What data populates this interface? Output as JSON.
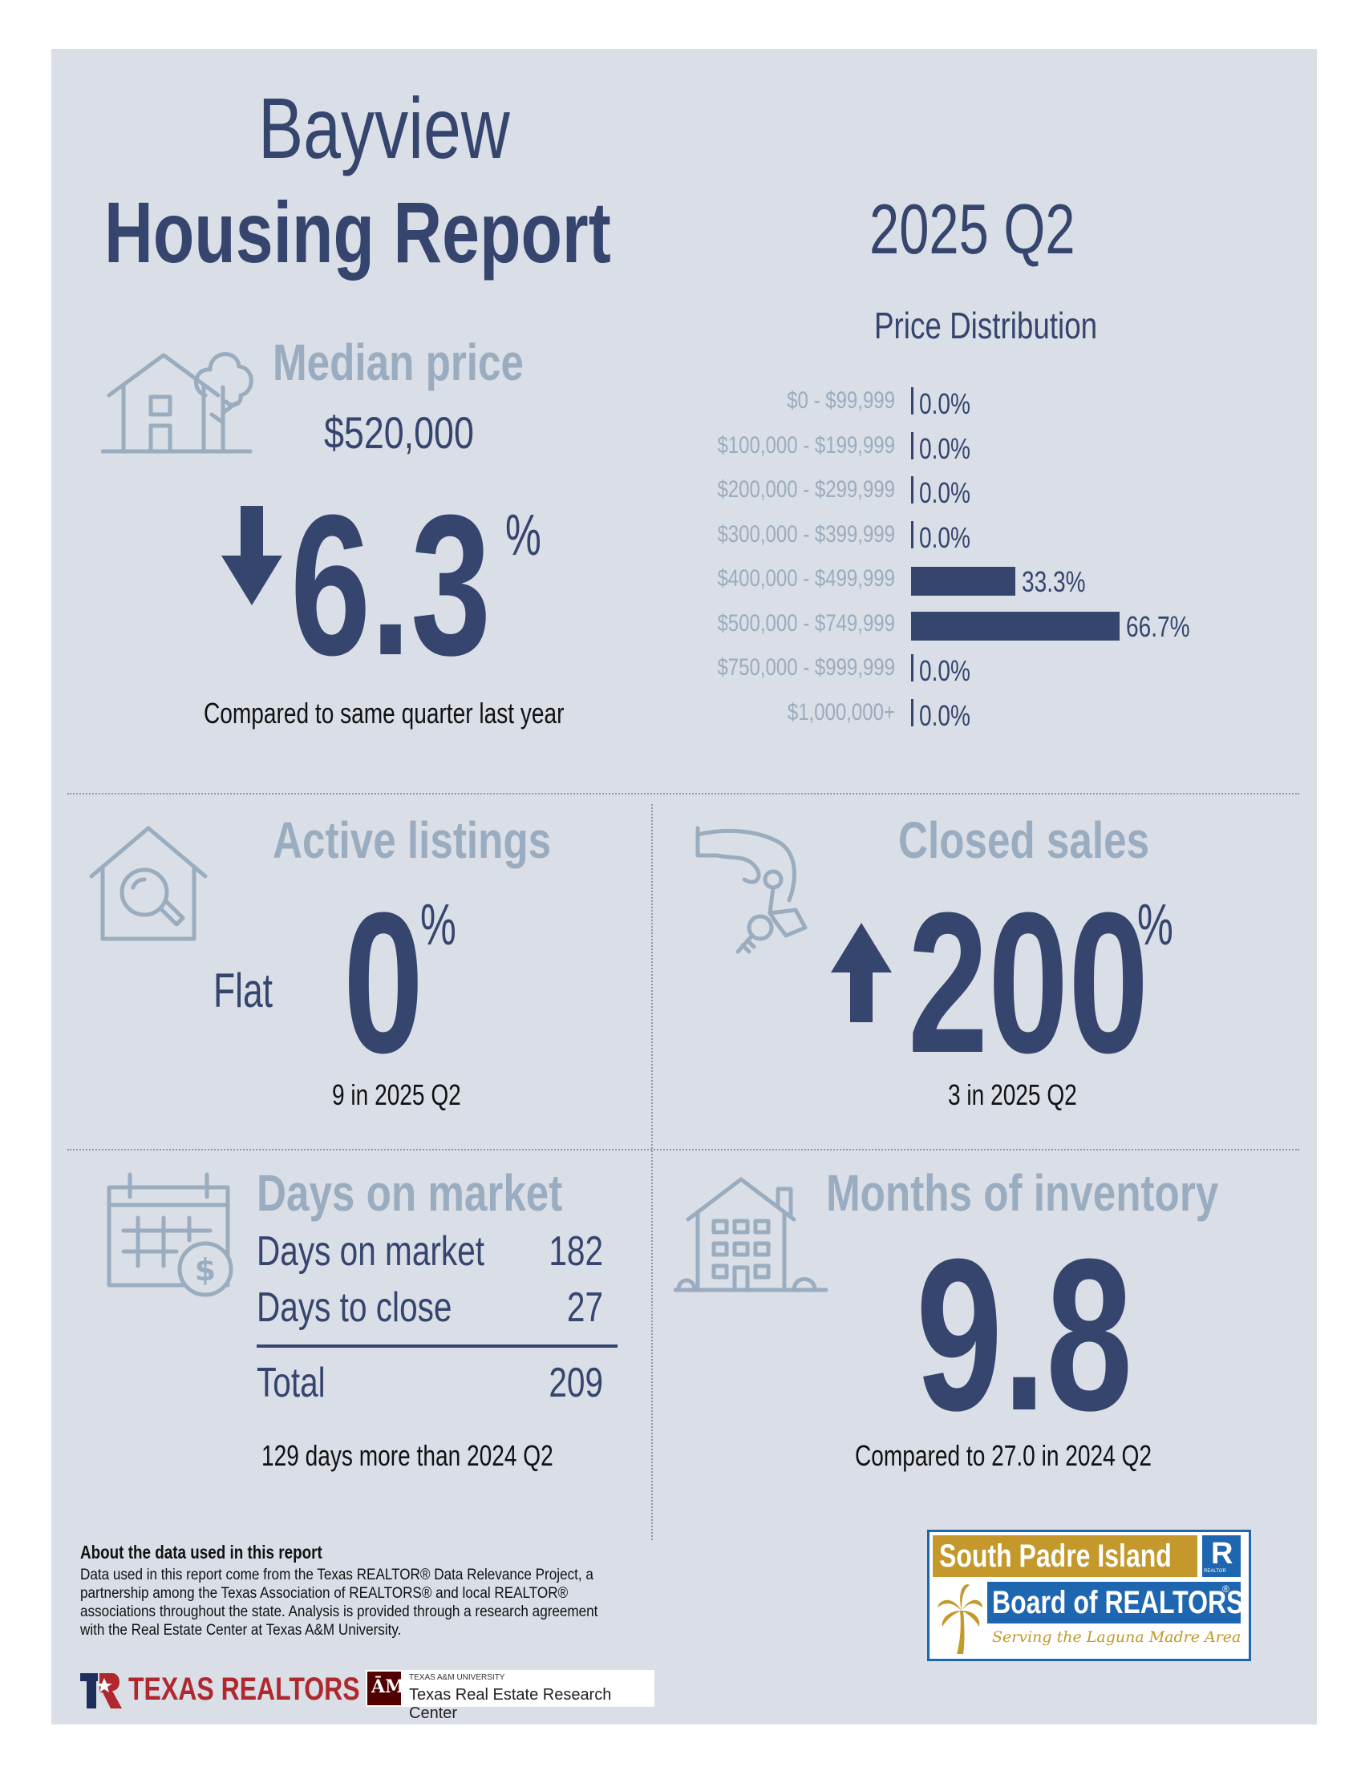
{
  "header": {
    "title_line1": "Bayview",
    "title_line2": "Housing Report",
    "quarter": "2025 Q2"
  },
  "median_price": {
    "heading": "Median price",
    "value": "$520,000",
    "direction": "down",
    "change": "6.3",
    "unit": "%",
    "caption": "Compared to same quarter last year"
  },
  "price_distribution": {
    "title": "Price Distribution"
  },
  "chart_data": {
    "type": "bar",
    "orientation": "horizontal",
    "title": "Price Distribution",
    "categories": [
      "$0 - $99,999",
      "$100,000 - $199,999",
      "$200,000 - $299,999",
      "$300,000 - $399,999",
      "$400,000 - $499,999",
      "$500,000 - $749,999",
      "$750,000 - $999,999",
      "$1,000,000+"
    ],
    "values": [
      0.0,
      0.0,
      0.0,
      0.0,
      33.3,
      66.7,
      0.0,
      0.0
    ],
    "labels": [
      "0.0%",
      "0.0%",
      "0.0%",
      "0.0%",
      "33.3%",
      "66.7%",
      "0.0%",
      "0.0%"
    ],
    "bar_color": "#35456e"
  },
  "active_listings": {
    "heading": "Active listings",
    "direction_label": "Flat",
    "change": "0",
    "unit": "%",
    "caption": "9 in 2025 Q2"
  },
  "closed_sales": {
    "heading": "Closed sales",
    "direction": "up",
    "change": "200",
    "unit": "%",
    "caption": "3 in 2025 Q2"
  },
  "days_on_market": {
    "heading": "Days on market",
    "rows": [
      {
        "label": "Days on market",
        "value": "182"
      },
      {
        "label": "Days to close",
        "value": "27"
      }
    ],
    "total_label": "Total",
    "total_value": "209",
    "caption": "129 days more than 2024 Q2"
  },
  "months_inventory": {
    "heading": "Months of inventory",
    "value": "9.8",
    "caption": "Compared to 27.0 in 2024 Q2"
  },
  "about": {
    "heading": "About the data used in this report",
    "text": "Data used in this report come from the Texas REALTOR® Data Relevance Project, a partnership among the Texas Association of REALTORS® and local REALTOR® associations throughout the state. Analysis is provided through a research agreement with the Real Estate Center at Texas A&M University."
  },
  "logos": {
    "texas_realtors": "TEXAS REALTORS",
    "tamu_small": "TEXAS A&M UNIVERSITY",
    "tamu_center": "Texas Real Estate Research Center",
    "spi_line1": "South Padre Island",
    "spi_line2": "Board of REALTORS",
    "spi_tagline": "Serving the Laguna Madre Area",
    "realtor_mark": "REALTOR"
  },
  "colors": {
    "navy": "#35456e",
    "muted": "#9aacbf",
    "panel": "#dadee6",
    "gold": "#c4982a",
    "blue": "#1e67b0"
  }
}
